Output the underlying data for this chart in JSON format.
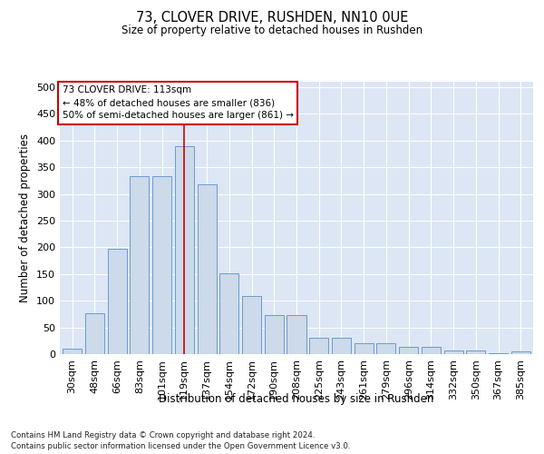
{
  "title1": "73, CLOVER DRIVE, RUSHDEN, NN10 0UE",
  "title2": "Size of property relative to detached houses in Rushden",
  "xlabel": "Distribution of detached houses by size in Rushden",
  "ylabel": "Number of detached properties",
  "footnote1": "Contains HM Land Registry data © Crown copyright and database right 2024.",
  "footnote2": "Contains public sector information licensed under the Open Government Licence v3.0.",
  "bar_labels": [
    "30sqm",
    "48sqm",
    "66sqm",
    "83sqm",
    "101sqm",
    "119sqm",
    "137sqm",
    "154sqm",
    "172sqm",
    "190sqm",
    "208sqm",
    "225sqm",
    "243sqm",
    "261sqm",
    "279sqm",
    "296sqm",
    "314sqm",
    "332sqm",
    "350sqm",
    "367sqm",
    "385sqm"
  ],
  "bar_values": [
    10,
    77,
    197,
    333,
    333,
    390,
    318,
    151,
    109,
    73,
    73,
    30,
    30,
    21,
    21,
    13,
    13,
    6,
    6,
    2,
    5
  ],
  "bar_color": "#ccdaea",
  "bar_edgecolor": "#5b8fc9",
  "annotation_text": "73 CLOVER DRIVE: 113sqm\n← 48% of detached houses are smaller (836)\n50% of semi-detached houses are larger (861) →",
  "vline_bar_index": 5,
  "ylim": [
    0,
    510
  ],
  "bg_color": "#dce6f4",
  "annotation_box_color": "#ffffff",
  "annotation_box_edgecolor": "#cc0000"
}
